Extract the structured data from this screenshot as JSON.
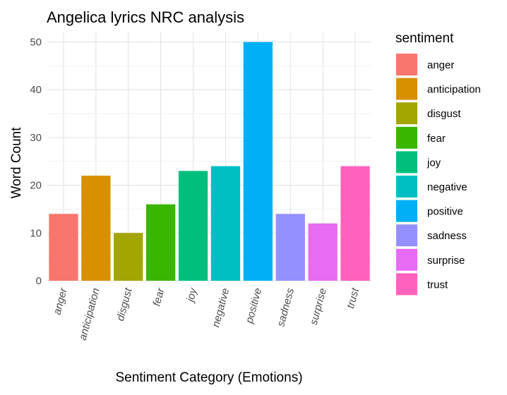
{
  "chart_data": {
    "type": "bar",
    "title": "Angelica lyrics NRC analysis",
    "xlabel": "Sentiment Category (Emotions)",
    "ylabel": "Word Count",
    "categories": [
      "anger",
      "anticipation",
      "disgust",
      "fear",
      "joy",
      "negative",
      "positive",
      "sadness",
      "surprise",
      "trust"
    ],
    "values": [
      14,
      22,
      10,
      16,
      23,
      24,
      50,
      14,
      12,
      24
    ],
    "colors": [
      "#F8766D",
      "#D89000",
      "#A3A500",
      "#39B600",
      "#00BF7D",
      "#00BFC4",
      "#00B0F6",
      "#9590FF",
      "#E76BF3",
      "#FF62BC"
    ],
    "ylim": [
      0,
      52
    ],
    "yticks": [
      "0",
      "10",
      "20",
      "30",
      "40",
      "50"
    ],
    "legend": {
      "title": "sentiment",
      "placement": "right",
      "entries": [
        "anger",
        "anticipation",
        "disgust",
        "fear",
        "joy",
        "negative",
        "positive",
        "sadness",
        "surprise",
        "trust"
      ]
    },
    "grid": true
  }
}
